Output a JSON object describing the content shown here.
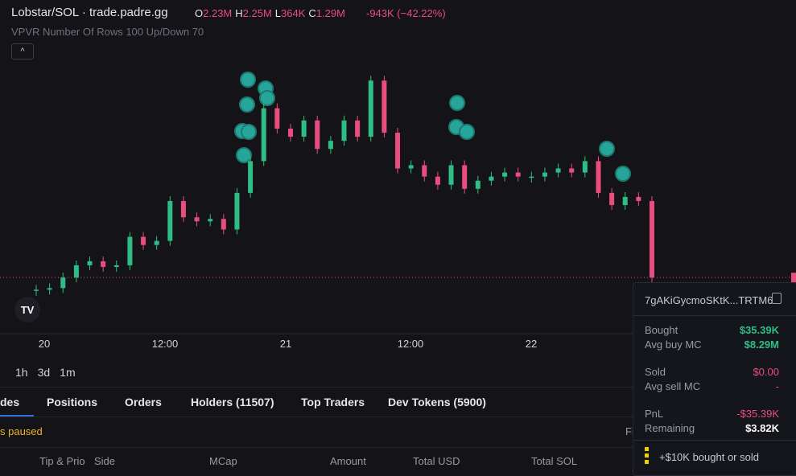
{
  "header": {
    "title": "Lobstar/SOL · trade.padre.gg",
    "ohlc": [
      {
        "label": "O",
        "value": "2.23M"
      },
      {
        "label": "H",
        "value": "2.25M"
      },
      {
        "label": "L",
        "value": "364K"
      },
      {
        "label": "C",
        "value": "1.29M"
      }
    ],
    "change": "-943K (−42.22%)",
    "indicator": "VPVR Number Of Rows 100 Up/Down 70"
  },
  "chart": {
    "closes": [
      1.14,
      1.16,
      1.29,
      1.44,
      1.49,
      1.42,
      1.44,
      1.79,
      1.69,
      1.74,
      2.23,
      2.03,
      1.98,
      2.01,
      1.88,
      2.33,
      2.72,
      3.37,
      3.12,
      3.02,
      3.22,
      2.87,
      2.97,
      3.22,
      3.02,
      3.71,
      3.07,
      2.63,
      2.67,
      2.53,
      2.43,
      2.67,
      2.38,
      2.48,
      2.53,
      2.58,
      2.53,
      2.53,
      2.58,
      2.63,
      2.58,
      2.72,
      2.33,
      2.18,
      2.28,
      2.23,
      1.29
    ],
    "ylim": [
      0.6,
      4.7
    ],
    "x_labels": [
      "20",
      "12:00",
      "21",
      "12:00",
      "22"
    ]
  },
  "timeframes": [
    "1h",
    "3d",
    "1m"
  ],
  "tabs": [
    "des",
    "Positions",
    "Orders",
    "Holders (11507)",
    "Top Traders",
    "Dev Tokens (5900)"
  ],
  "status": "s paused",
  "filter_cut": "Fi",
  "columns": [
    "Tip & Prio",
    "Side",
    "MCap",
    "Amount",
    "Total USD",
    "Total SOL"
  ],
  "wallet_popup": {
    "address": "7gAKiGycmoSKtK...TRTM6",
    "bought_label": "Bought",
    "bought": "$35.39K",
    "avg_buy_label": "Avg buy MC",
    "avg_buy": "$8.29M",
    "sold_label": "Sold",
    "sold": "$0.00",
    "avg_sell_label": "Avg sell MC",
    "avg_sell": "-",
    "pnl_label": "PnL",
    "pnl": "-$35.39K",
    "remaining_label": "Remaining",
    "remaining": "$3.82K",
    "footer": "+$10K bought or sold"
  }
}
